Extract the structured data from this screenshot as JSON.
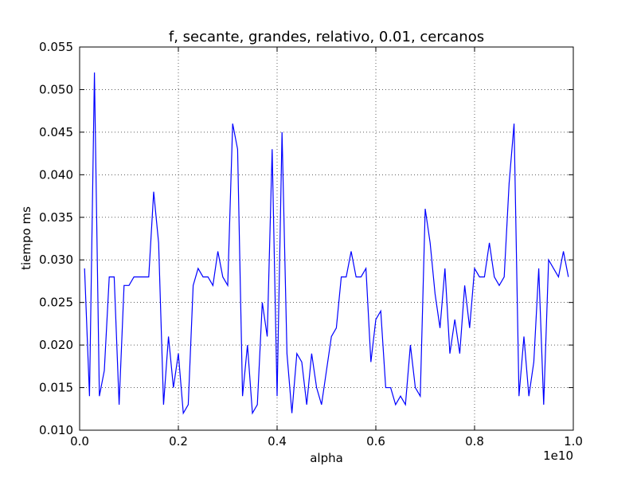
{
  "chart_data": {
    "type": "line",
    "title": "f, secante, grandes, relativo, 0.01, cercanos",
    "xlabel": "alpha",
    "ylabel": "tiempo ms",
    "x_offset_label": "1e10",
    "xlim": [
      0.0,
      1.0
    ],
    "ylim": [
      0.01,
      0.055
    ],
    "x_ticks": [
      0.0,
      0.2,
      0.4,
      0.6,
      0.8,
      1.0
    ],
    "x_tick_labels": [
      "0.0",
      "0.2",
      "0.4",
      "0.6",
      "0.8",
      "1.0"
    ],
    "y_ticks": [
      0.01,
      0.015,
      0.02,
      0.025,
      0.03,
      0.035,
      0.04,
      0.045,
      0.05,
      0.055
    ],
    "y_tick_labels": [
      "0.010",
      "0.015",
      "0.020",
      "0.025",
      "0.030",
      "0.035",
      "0.040",
      "0.045",
      "0.050",
      "0.055"
    ],
    "grid": true,
    "series": [
      {
        "color": "#0000ff",
        "x": [
          0.01,
          0.02,
          0.03,
          0.04,
          0.05,
          0.06,
          0.07,
          0.08,
          0.09,
          0.1,
          0.11,
          0.12,
          0.13,
          0.14,
          0.15,
          0.16,
          0.17,
          0.18,
          0.19,
          0.2,
          0.21,
          0.22,
          0.23,
          0.24,
          0.25,
          0.26,
          0.27,
          0.28,
          0.29,
          0.3,
          0.31,
          0.32,
          0.33,
          0.34,
          0.35,
          0.36,
          0.37,
          0.38,
          0.39,
          0.4,
          0.41,
          0.42,
          0.43,
          0.44,
          0.45,
          0.46,
          0.47,
          0.48,
          0.49,
          0.5,
          0.51,
          0.52,
          0.53,
          0.54,
          0.55,
          0.56,
          0.57,
          0.58,
          0.59,
          0.6,
          0.61,
          0.62,
          0.63,
          0.64,
          0.65,
          0.66,
          0.67,
          0.68,
          0.69,
          0.7,
          0.71,
          0.72,
          0.73,
          0.74,
          0.75,
          0.76,
          0.77,
          0.78,
          0.79,
          0.8,
          0.81,
          0.82,
          0.83,
          0.84,
          0.85,
          0.86,
          0.87,
          0.88,
          0.89,
          0.9,
          0.91,
          0.92,
          0.93,
          0.94,
          0.95,
          0.96,
          0.97,
          0.98,
          0.99
        ],
        "values": [
          0.029,
          0.014,
          0.052,
          0.014,
          0.017,
          0.028,
          0.028,
          0.013,
          0.027,
          0.027,
          0.028,
          0.028,
          0.028,
          0.028,
          0.038,
          0.032,
          0.013,
          0.021,
          0.015,
          0.019,
          0.012,
          0.013,
          0.027,
          0.029,
          0.028,
          0.028,
          0.027,
          0.031,
          0.028,
          0.027,
          0.046,
          0.043,
          0.014,
          0.02,
          0.012,
          0.013,
          0.025,
          0.021,
          0.043,
          0.014,
          0.045,
          0.019,
          0.012,
          0.019,
          0.018,
          0.013,
          0.019,
          0.015,
          0.013,
          0.017,
          0.021,
          0.022,
          0.028,
          0.028,
          0.031,
          0.028,
          0.028,
          0.029,
          0.018,
          0.023,
          0.024,
          0.015,
          0.015,
          0.013,
          0.014,
          0.013,
          0.02,
          0.015,
          0.014,
          0.036,
          0.032,
          0.026,
          0.022,
          0.029,
          0.019,
          0.023,
          0.019,
          0.027,
          0.022,
          0.029,
          0.028,
          0.028,
          0.032,
          0.028,
          0.027,
          0.028,
          0.039,
          0.046,
          0.014,
          0.021,
          0.014,
          0.018,
          0.029,
          0.013,
          0.03,
          0.029,
          0.028,
          0.031,
          0.028
        ]
      }
    ]
  }
}
